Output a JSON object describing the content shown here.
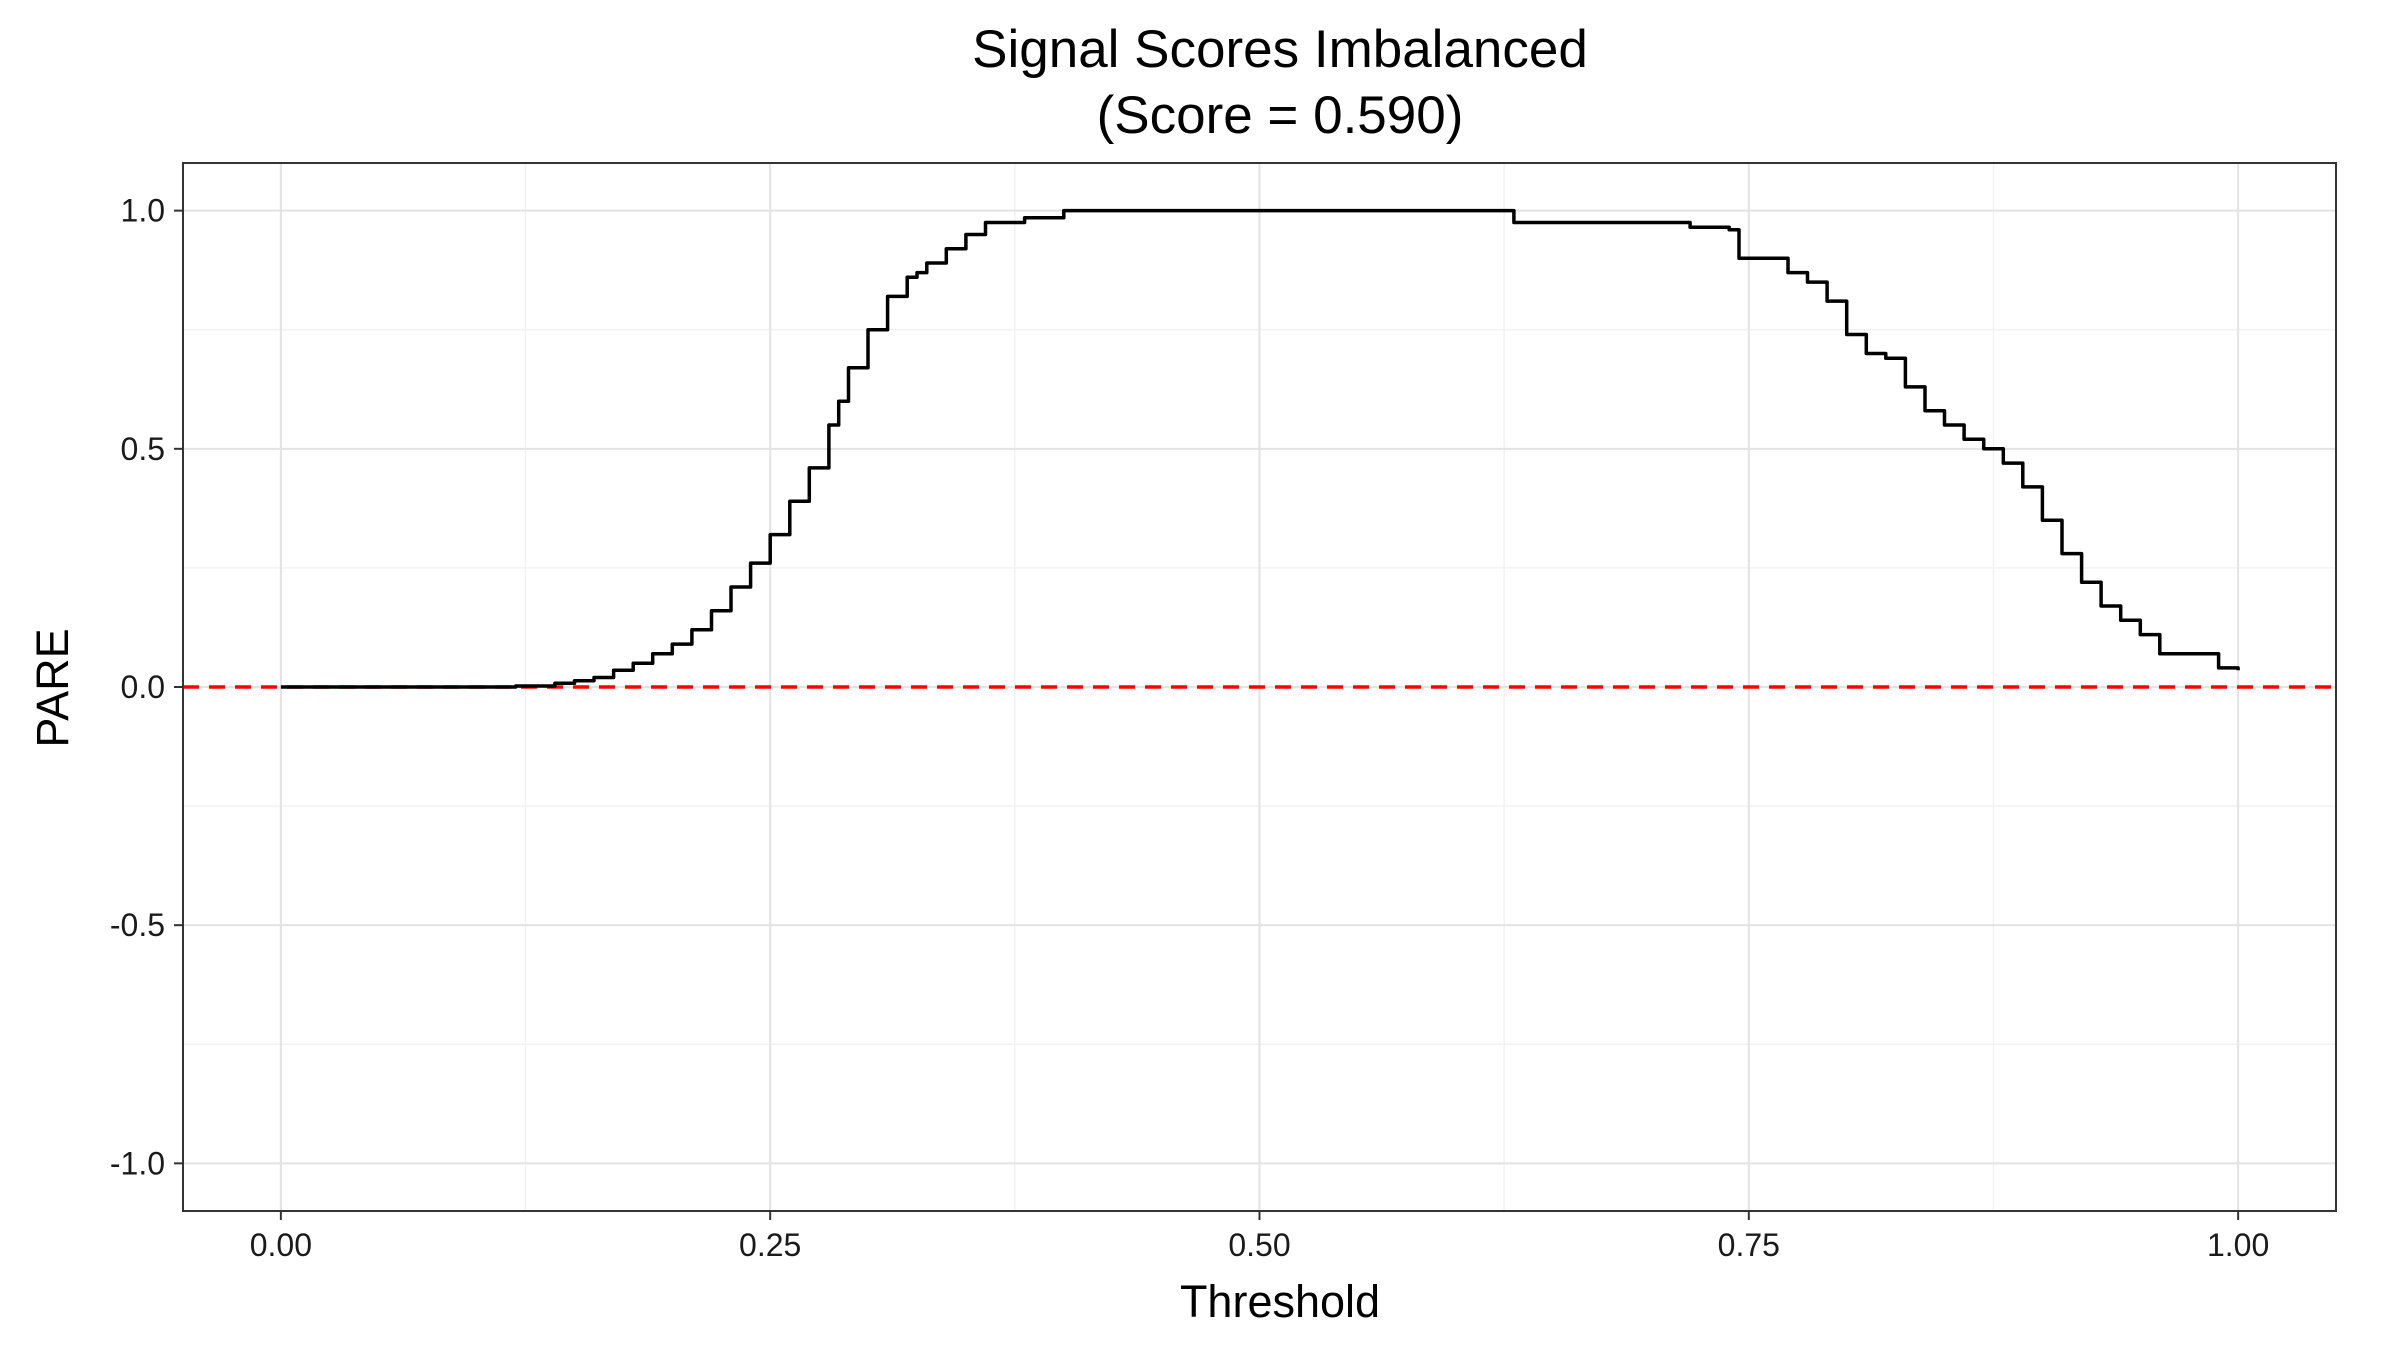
{
  "chart_data": {
    "type": "line",
    "title": "Signal Scores Imbalanced",
    "subtitle": "(Score = 0.590)",
    "xlabel": "Threshold",
    "ylabel": "PARE",
    "xlim": [
      -0.05,
      1.05
    ],
    "ylim": [
      -1.1,
      1.1
    ],
    "x_ticks": [
      0.0,
      0.25,
      0.5,
      0.75,
      1.0
    ],
    "x_tick_labels": [
      "0.00",
      "0.25",
      "0.50",
      "0.75",
      "1.00"
    ],
    "y_ticks": [
      -1.0,
      -0.5,
      0.0,
      0.5,
      1.0
    ],
    "y_tick_labels": [
      "-1.0",
      "-0.5",
      "0.0",
      "0.5",
      "1.0"
    ],
    "grid": true,
    "reference_line": {
      "y": 0.0,
      "color": "#ff0000",
      "style": "dashed"
    },
    "line_color": "#000000",
    "series": [
      {
        "x": [
          0.0,
          0.05,
          0.1,
          0.12,
          0.14,
          0.15,
          0.16,
          0.17,
          0.18,
          0.19,
          0.2,
          0.21,
          0.22,
          0.23,
          0.24,
          0.25,
          0.26,
          0.27,
          0.28,
          0.285,
          0.29,
          0.3,
          0.31,
          0.32,
          0.325,
          0.33,
          0.34,
          0.35,
          0.36,
          0.38,
          0.4,
          0.5,
          0.6,
          0.625,
          0.63,
          0.68,
          0.7,
          0.72,
          0.74,
          0.745,
          0.75,
          0.77,
          0.78,
          0.79,
          0.8,
          0.81,
          0.82,
          0.83,
          0.84,
          0.85,
          0.86,
          0.87,
          0.88,
          0.89,
          0.9,
          0.91,
          0.92,
          0.93,
          0.94,
          0.95,
          0.96,
          0.97,
          0.98,
          0.99,
          1.0
        ],
        "y": [
          0.0,
          0.0,
          0.0,
          0.002,
          0.008,
          0.013,
          0.02,
          0.035,
          0.05,
          0.07,
          0.09,
          0.12,
          0.16,
          0.21,
          0.26,
          0.32,
          0.39,
          0.46,
          0.55,
          0.6,
          0.67,
          0.75,
          0.82,
          0.86,
          0.87,
          0.89,
          0.92,
          0.95,
          0.975,
          0.985,
          1.0,
          1.0,
          1.0,
          1.0,
          0.975,
          0.975,
          0.975,
          0.965,
          0.96,
          0.9,
          0.9,
          0.87,
          0.85,
          0.81,
          0.74,
          0.7,
          0.69,
          0.63,
          0.58,
          0.55,
          0.52,
          0.5,
          0.47,
          0.42,
          0.35,
          0.28,
          0.22,
          0.17,
          0.14,
          0.11,
          0.07,
          0.07,
          0.07,
          0.04,
          0.035
        ]
      }
    ]
  }
}
